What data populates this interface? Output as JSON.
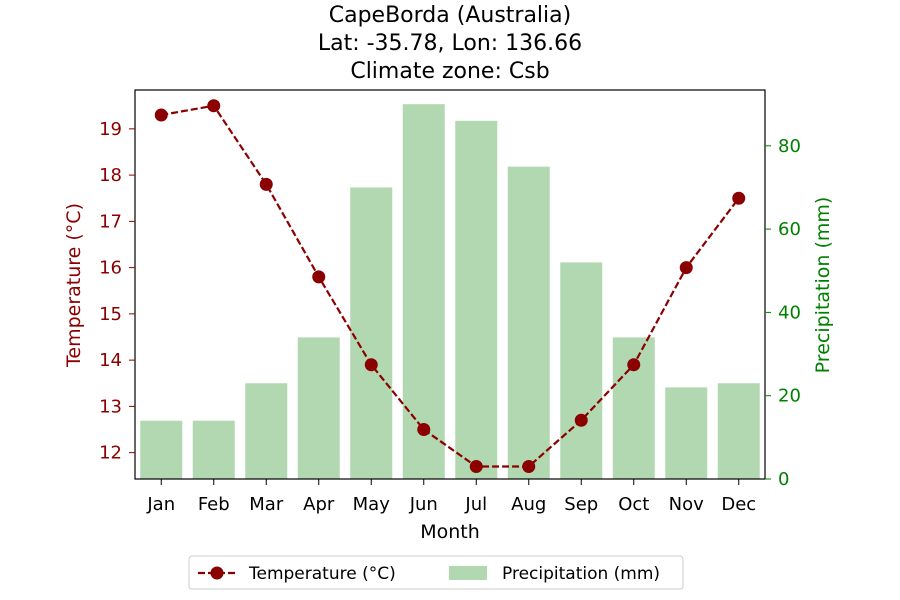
{
  "chart_data": {
    "type": "bar+line",
    "title_lines": [
      "CapeBorda (Australia)",
      "Lat: -35.78, Lon: 136.66",
      "Climate zone: Csb"
    ],
    "xlabel": "Month",
    "ylabel_left": "Temperature (°C)",
    "ylabel_right": "Precipitation (mm)",
    "categories": [
      "Jan",
      "Feb",
      "Mar",
      "Apr",
      "May",
      "Jun",
      "Jul",
      "Aug",
      "Sep",
      "Oct",
      "Nov",
      "Dec"
    ],
    "temperature": {
      "name": "Temperature (°C)",
      "values": [
        19.3,
        19.5,
        17.8,
        15.8,
        13.9,
        12.5,
        11.7,
        11.7,
        12.7,
        13.9,
        16.0,
        17.5
      ],
      "color": "#8b0000"
    },
    "precipitation": {
      "name": "Precipitation (mm)",
      "values": [
        14,
        14,
        23,
        34,
        70,
        90,
        86,
        75,
        52,
        34,
        22,
        23
      ],
      "color": "#b2d8b2"
    },
    "y_left": {
      "ticks": [
        12,
        13,
        14,
        15,
        16,
        17,
        18,
        19
      ],
      "range": [
        11.43,
        19.84
      ]
    },
    "y_right": {
      "ticks": [
        0,
        20,
        40,
        60,
        80
      ],
      "range": [
        0,
        93.4
      ]
    },
    "left_axis_color": "#8b0000",
    "right_axis_color": "#008000",
    "legend_position": "bottom-center",
    "grid": false
  }
}
